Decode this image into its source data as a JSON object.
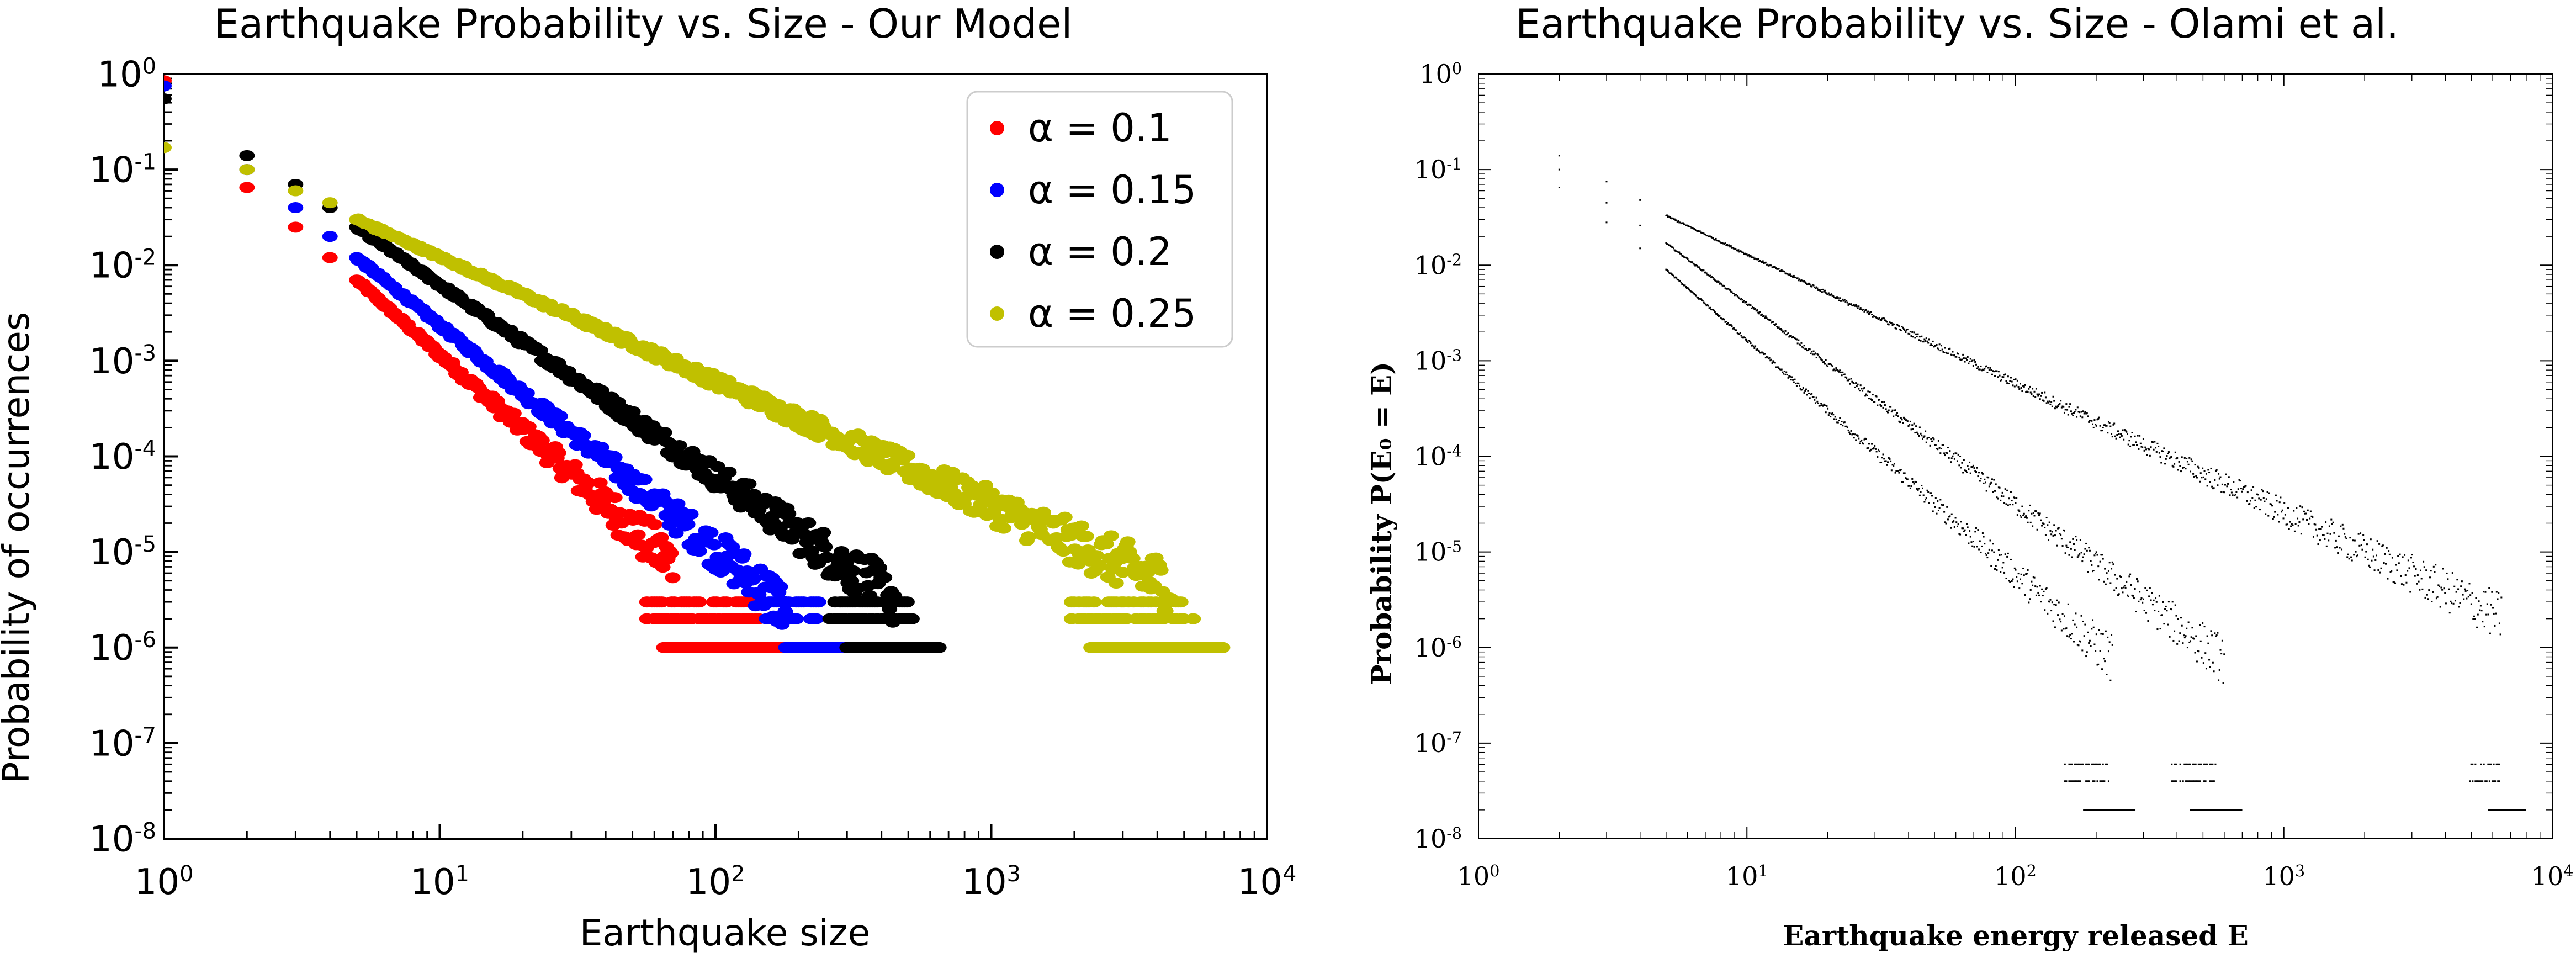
{
  "chart_data": [
    {
      "type": "scatter",
      "title": "Earthquake Probability vs. Size - Our Model",
      "xlabel": "Earthquake size",
      "ylabel": "Probability of occurrences",
      "xscale": "log",
      "yscale": "log",
      "xlim": [
        1,
        10000
      ],
      "ylim": [
        1e-08,
        1
      ],
      "xticks": [
        1,
        10,
        100,
        1000,
        10000
      ],
      "yticks": [
        1,
        0.1,
        0.01,
        0.001,
        0.0001,
        1e-05,
        1e-06,
        1e-07,
        1e-08
      ],
      "xtick_labels": [
        {
          "base": "10",
          "exp": "0"
        },
        {
          "base": "10",
          "exp": "1"
        },
        {
          "base": "10",
          "exp": "2"
        },
        {
          "base": "10",
          "exp": "3"
        },
        {
          "base": "10",
          "exp": "4"
        }
      ],
      "ytick_labels": [
        {
          "base": "10",
          "exp": "0"
        },
        {
          "base": "10",
          "exp": "-1"
        },
        {
          "base": "10",
          "exp": "-2"
        },
        {
          "base": "10",
          "exp": "-3"
        },
        {
          "base": "10",
          "exp": "-4"
        },
        {
          "base": "10",
          "exp": "-5"
        },
        {
          "base": "10",
          "exp": "-6"
        },
        {
          "base": "10",
          "exp": "-7"
        },
        {
          "base": "10",
          "exp": "-8"
        }
      ],
      "grid": false,
      "legend": "top-right",
      "series": [
        {
          "name": "α = 0.1",
          "color": "#ff0000",
          "head": [
            [
              1,
              0.85
            ],
            [
              2,
              0.065
            ],
            [
              3,
              0.025
            ],
            [
              4,
              0.012
            ],
            [
              5,
              0.007
            ]
          ],
          "slope": -2.6,
          "x_end": 70,
          "y_floor": 1e-06,
          "floor_range": [
            65,
            180
          ]
        },
        {
          "name": "α = 0.15",
          "color": "#0000ff",
          "head": [
            [
              1,
              0.75
            ],
            [
              2,
              0.1
            ],
            [
              3,
              0.04
            ],
            [
              4,
              0.02
            ],
            [
              5,
              0.012
            ]
          ],
          "slope": -2.35,
          "x_end": 180,
          "y_floor": 1e-06,
          "floor_range": [
            180,
            300
          ]
        },
        {
          "name": "α = 0.2",
          "color": "#000000",
          "head": [
            [
              1,
              0.55
            ],
            [
              2,
              0.14
            ],
            [
              3,
              0.07
            ],
            [
              4,
              0.04
            ],
            [
              5,
              0.025
            ]
          ],
          "slope": -2.0,
          "x_end": 450,
          "y_floor": 1e-06,
          "floor_range": [
            300,
            650
          ]
        },
        {
          "name": "α = 0.25",
          "color": "#c0c000",
          "head": [
            [
              1,
              0.17
            ],
            [
              2,
              0.1
            ],
            [
              3,
              0.06
            ],
            [
              4,
              0.045
            ],
            [
              5,
              0.03
            ]
          ],
          "slope": -1.3,
          "x_end": 4500,
          "y_floor": 1e-06,
          "floor_range": [
            2300,
            7000
          ]
        }
      ]
    },
    {
      "type": "scatter",
      "title": "Earthquake Probability vs. Size - Olami et al.",
      "xlabel": "Earthquake energy released E",
      "ylabel": "Probability P(E₀ = E)",
      "xscale": "log",
      "yscale": "log",
      "xlim": [
        1,
        10000
      ],
      "ylim": [
        1e-08,
        1
      ],
      "xticks": [
        1,
        10,
        100,
        1000,
        10000
      ],
      "yticks": [
        1,
        0.1,
        0.01,
        0.001,
        0.0001,
        1e-05,
        1e-06,
        1e-07,
        1e-08
      ],
      "xtick_labels": [
        {
          "base": "10",
          "exp": "0"
        },
        {
          "base": "10",
          "exp": "1"
        },
        {
          "base": "10",
          "exp": "2"
        },
        {
          "base": "10",
          "exp": "3"
        },
        {
          "base": "10",
          "exp": "4"
        }
      ],
      "ytick_labels": [
        {
          "base": "10",
          "exp": "0"
        },
        {
          "base": "10",
          "exp": "-1"
        },
        {
          "base": "10",
          "exp": "-2"
        },
        {
          "base": "10",
          "exp": "-3"
        },
        {
          "base": "10",
          "exp": "-4"
        },
        {
          "base": "10",
          "exp": "-5"
        },
        {
          "base": "10",
          "exp": "-6"
        },
        {
          "base": "10",
          "exp": "-7"
        },
        {
          "base": "10",
          "exp": "-8"
        }
      ],
      "grid": false,
      "legend": "none",
      "series": [
        {
          "color": "#000000",
          "head": [
            [
              2,
              0.065
            ],
            [
              3,
              0.028
            ],
            [
              4,
              0.015
            ],
            [
              5,
              0.009
            ]
          ],
          "slope": -2.45,
          "x_end": 230,
          "y_floor": 2e-08,
          "floor_range": [
            180,
            280
          ]
        },
        {
          "color": "#000000",
          "head": [
            [
              2,
              0.1
            ],
            [
              3,
              0.045
            ],
            [
              4,
              0.026
            ],
            [
              5,
              0.017
            ]
          ],
          "slope": -2.1,
          "x_end": 600,
          "y_floor": 2e-08,
          "floor_range": [
            450,
            700
          ]
        },
        {
          "color": "#000000",
          "head": [
            [
              2,
              0.14
            ],
            [
              3,
              0.075
            ],
            [
              4,
              0.048
            ],
            [
              5,
              0.033
            ]
          ],
          "slope": -1.35,
          "x_end": 6500,
          "y_floor": 2e-08,
          "floor_range": [
            5800,
            8000
          ]
        }
      ]
    }
  ]
}
